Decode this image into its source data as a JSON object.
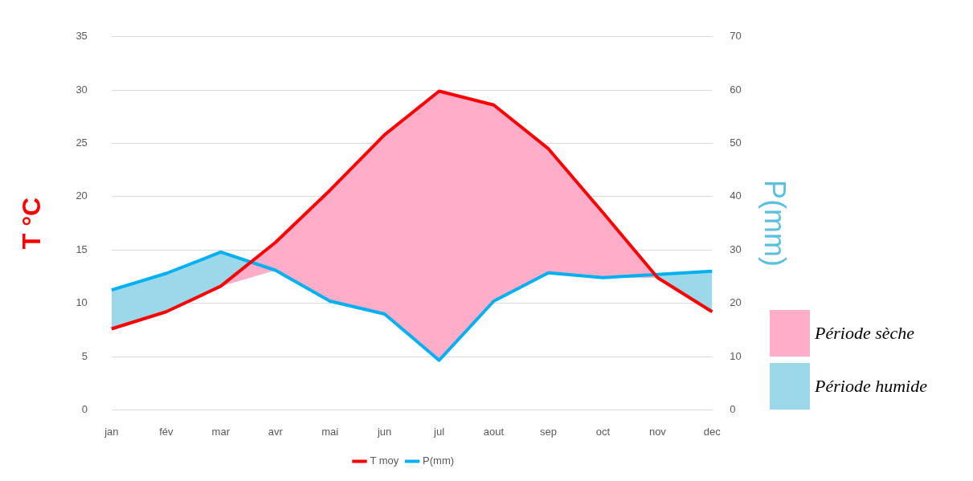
{
  "chart_data": {
    "type": "line",
    "categories": [
      "jan",
      "fév",
      "mar",
      "avr",
      "mai",
      "jun",
      "jul",
      "aout",
      "sep",
      "oct",
      "nov",
      "dec"
    ],
    "series": [
      {
        "name": "T moy",
        "color": "#ff0000",
        "values": [
          7.6,
          9.2,
          11.6,
          15.7,
          20.6,
          25.8,
          29.9,
          28.6,
          24.5,
          18.5,
          12.4,
          9.2
        ],
        "lower": [
          7.6,
          9.2,
          11.6,
          13.1,
          10.2,
          9,
          4.7,
          10.2,
          12.9,
          12.4,
          12.4,
          9.2
        ],
        "upper": [
          7.6,
          9.2,
          11.6,
          15.7,
          20.6,
          25.8,
          29.9,
          28.6,
          24.5,
          18.5,
          12.4,
          9.2
        ]
      },
      {
        "name": "P(mm)",
        "color": "#00b0f0",
        "axis": "y2",
        "values": [
          22.5,
          25.6,
          29.6,
          26.2,
          20.4,
          18,
          9.3,
          20.4,
          25.7,
          24.8,
          25.4,
          26
        ],
        "lower": [
          15.2,
          18.4,
          23.2,
          26.2,
          20.4,
          18,
          9.3,
          20.4,
          25.7,
          24.8,
          24.8,
          18.4
        ],
        "upper": [
          22.5,
          25.6,
          29.6,
          26.2,
          20.4,
          18,
          9.3,
          20.4,
          25.7,
          24.8,
          25.4,
          26
        ]
      }
    ],
    "ylabel": "T °C",
    "y2label": "P(mm)",
    "ylim": [
      0,
      35
    ],
    "yticks": [
      0,
      5,
      10,
      15,
      20,
      25,
      30,
      35
    ],
    "y2lim": [
      0,
      70
    ],
    "y2ticks": [
      0,
      10,
      20,
      30,
      40,
      50,
      60,
      70
    ],
    "grid": "y",
    "legend": "bottom",
    "marker": "none",
    "line_style": "solid",
    "annotations": [
      "Période sèche",
      "Période humide"
    ]
  }
}
